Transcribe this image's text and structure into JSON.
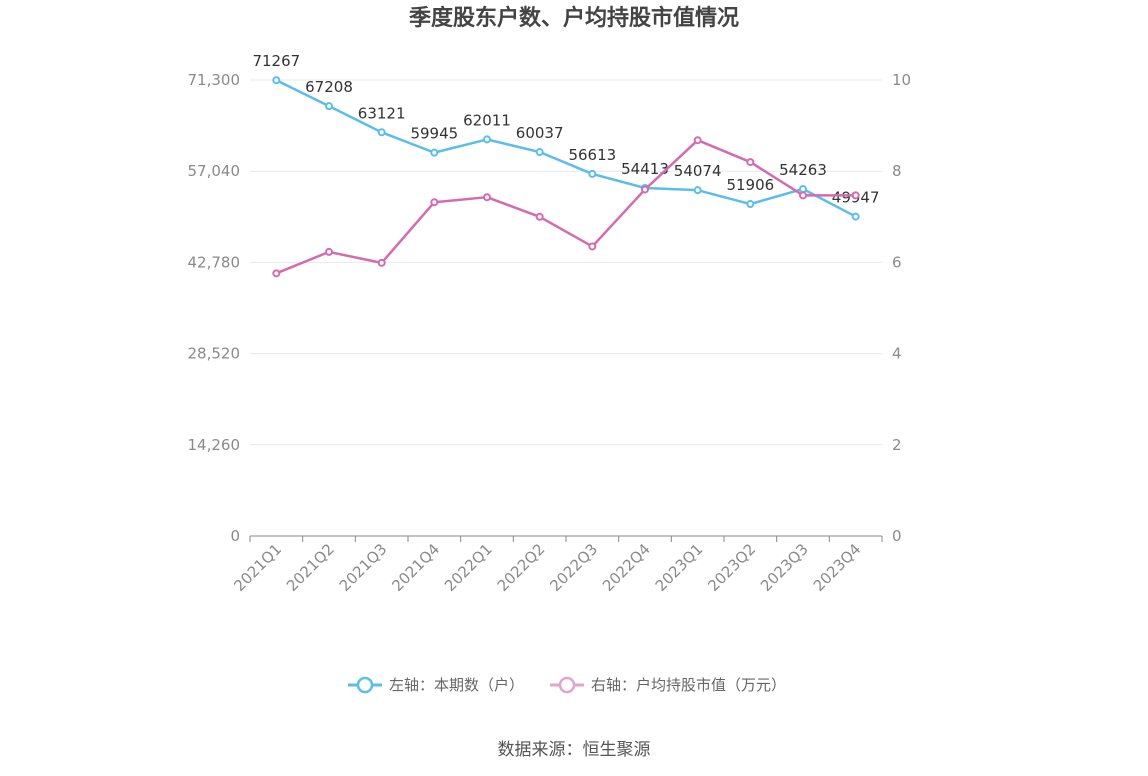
{
  "chart_data": {
    "type": "line",
    "title": "季度股东户数、户均持股市值情况",
    "categories": [
      "2021Q1",
      "2021Q2",
      "2021Q3",
      "2021Q4",
      "2022Q1",
      "2022Q2",
      "2022Q3",
      "2022Q4",
      "2023Q1",
      "2023Q2",
      "2023Q3",
      "2023Q4"
    ],
    "left_axis": {
      "ylim": [
        0,
        71300
      ],
      "ticks": [
        0,
        14260,
        28520,
        42780,
        57040,
        71300
      ],
      "tick_labels": [
        "0",
        "14,260",
        "28,520",
        "42,780",
        "57,040",
        "71,300"
      ]
    },
    "right_axis": {
      "ylim": [
        0,
        10
      ],
      "ticks": [
        0,
        2,
        4,
        6,
        8,
        10
      ],
      "tick_labels": [
        "0",
        "2",
        "4",
        "6",
        "8",
        "10"
      ]
    },
    "series": [
      {
        "name": "左轴：本期数（户）",
        "axis": "left",
        "color": "#5bbdea",
        "values": [
          71267,
          67208,
          63121,
          59945,
          62011,
          60037,
          56613,
          54413,
          54074,
          51906,
          54263,
          49947
        ],
        "labels": [
          "71267",
          "67208",
          "63121",
          "59945",
          "62011",
          "60037",
          "56613",
          "54413",
          "54074",
          "51906",
          "54263",
          "49947"
        ]
      },
      {
        "name": "右轴：户均持股市值（万元）",
        "axis": "right",
        "color": "#d36bb1",
        "values": [
          5.76,
          6.23,
          5.99,
          7.32,
          7.43,
          7.0,
          6.35,
          7.6,
          8.68,
          8.2,
          7.47,
          7.47
        ]
      }
    ],
    "legend": {
      "position": "bottom",
      "items": [
        "左轴：本期数（户）",
        "右轴：户均持股市值（万元）"
      ]
    },
    "grid": true
  },
  "source": "数据来源：恒生聚源"
}
